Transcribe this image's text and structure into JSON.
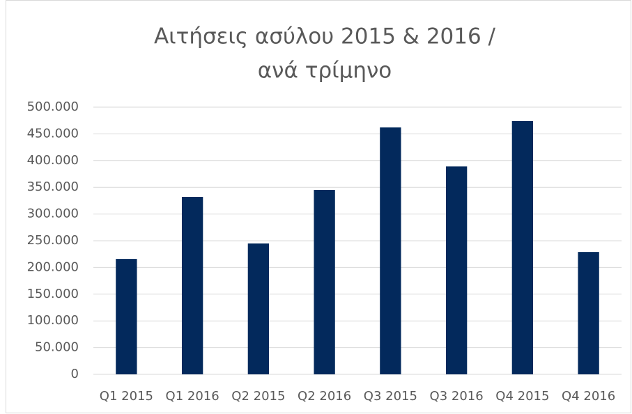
{
  "chart_data": {
    "type": "bar",
    "title": [
      "Αιτήσεις ασύλου 2015 & 2016 /",
      "ανά τρίμηνο"
    ],
    "categories": [
      "Q1 2015",
      "Q1 2016",
      "Q2 2015",
      "Q2 2016",
      "Q3 2015",
      "Q3 2016",
      "Q4 2015",
      "Q4 2016"
    ],
    "values": [
      216000,
      332000,
      245000,
      345000,
      462000,
      389000,
      474000,
      229000
    ],
    "color": "#03295c",
    "ylim": [
      0,
      500000
    ],
    "yticks": [
      0,
      {
        "value": 50000,
        "label": "50.000"
      },
      {
        "value": 100000,
        "label": "100.000"
      },
      {
        "value": 150000,
        "label": "150.000"
      },
      {
        "value": 200000,
        "label": "200.000"
      },
      {
        "value": 250000,
        "label": "250.000"
      },
      {
        "value": 300000,
        "label": "300.000"
      },
      {
        "value": 350000,
        "label": "350.000"
      },
      {
        "value": 400000,
        "label": "400.000"
      },
      {
        "value": 450000,
        "label": "450.000"
      },
      {
        "value": 500000,
        "label": "500.000"
      }
    ],
    "grid": true
  }
}
